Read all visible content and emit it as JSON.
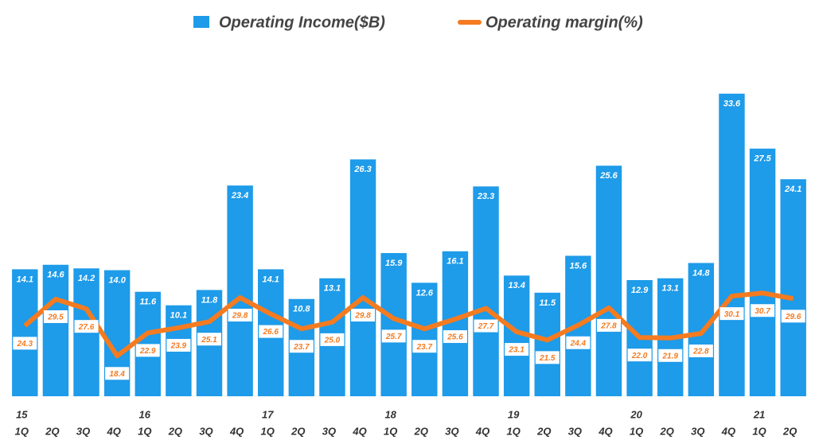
{
  "chart_data": {
    "type": "bar-line",
    "categories": [
      "1Q",
      "2Q",
      "3Q",
      "4Q",
      "1Q",
      "2Q",
      "3Q",
      "4Q",
      "1Q",
      "2Q",
      "3Q",
      "4Q",
      "1Q",
      "2Q",
      "3Q",
      "4Q",
      "1Q",
      "2Q",
      "3Q",
      "4Q",
      "1Q",
      "2Q",
      "3Q",
      "4Q",
      "1Q",
      "2Q"
    ],
    "year_labels": [
      "15",
      null,
      null,
      null,
      "16",
      null,
      null,
      null,
      "17",
      null,
      null,
      null,
      "18",
      null,
      null,
      null,
      "19",
      null,
      null,
      null,
      "20",
      null,
      null,
      null,
      "21",
      null
    ],
    "ylim": [
      0,
      38.7
    ],
    "y2lim": [
      10.5,
      78.7
    ],
    "legend_position": "top",
    "series": [
      {
        "name": "Operating Income($B)",
        "type": "bar",
        "color": "#1e9be9",
        "values": [
          14.1,
          14.6,
          14.2,
          14.0,
          11.6,
          10.1,
          11.8,
          23.4,
          14.1,
          10.8,
          13.1,
          26.3,
          15.9,
          12.6,
          16.1,
          23.3,
          13.4,
          11.5,
          15.6,
          25.6,
          12.9,
          13.1,
          14.8,
          33.6,
          27.5,
          24.1
        ],
        "value_labels": [
          "14.1",
          "14.6",
          "14.2",
          "14.0",
          "11.6",
          "10.1",
          "11.8",
          "23.4",
          "14.1",
          "10.8",
          "13.1",
          "26.3",
          "15.9",
          "12.6",
          "16.1",
          "23.3",
          "13.4",
          "11.5",
          "15.6",
          "25.6",
          "12.9",
          "13.1",
          "14.8",
          "33.6",
          "27.5",
          "24.1"
        ]
      },
      {
        "name": "Operating margin(%)",
        "type": "line",
        "axis": "y2",
        "color": "#f47b20",
        "values": [
          24.3,
          29.5,
          27.6,
          18.4,
          22.9,
          23.9,
          25.1,
          29.8,
          26.6,
          23.7,
          25.0,
          29.8,
          25.7,
          23.7,
          25.6,
          27.7,
          23.1,
          21.5,
          24.4,
          27.8,
          22.0,
          21.9,
          22.8,
          30.1,
          30.7,
          29.6
        ],
        "value_labels": [
          "24.3",
          "29.5",
          "27.6",
          "18.4",
          "22.9",
          "23.9",
          "25.1",
          "29.8",
          "26.6",
          "23.7",
          "25.0",
          "29.8",
          "25.7",
          "23.7",
          "25.6",
          "27.7",
          "23.1",
          "21.5",
          "24.4",
          "27.8",
          "22.0",
          "21.9",
          "22.8",
          "30.1",
          "30.7",
          "29.6"
        ]
      }
    ]
  }
}
